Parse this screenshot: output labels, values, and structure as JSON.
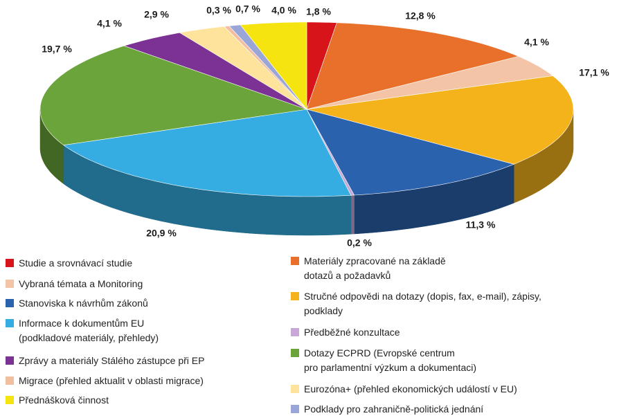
{
  "chart_data": {
    "type": "pie3d",
    "categories": [
      "Studie a srovnávací studie",
      "Materiály zpracované na základě\ndotazů a požadavků",
      "Vybraná témata a Monitoring",
      "Stručné odpovědi na dotazy (dopis, fax, e-mail), zápisy,\npodklady",
      "Stanoviska k návrhům zákonů",
      "Předběžné konzultace",
      "Informace k dokumentům EU\n(podkladové materiály, přehledy)",
      "Dotazy ECPRD (Evropské centrum\npro parlamentní výzkum a dokumentaci)",
      "Zprávy a materiály Stálého zástupce při EP",
      "Eurozóna+ (přehled ekonomických událostí v EU)",
      "Migrace (přehled aktualit v oblasti migrace)",
      "Podklady pro zahraničně-politická jednání",
      "Přednášková činnost"
    ],
    "values": [
      1.8,
      12.8,
      4.1,
      17.1,
      11.3,
      0.2,
      20.9,
      19.7,
      4.1,
      2.9,
      0.3,
      0.7,
      4.0
    ],
    "value_labels": [
      "1,8 %",
      "12,8 %",
      "4,1 %",
      "17,1 %",
      "11,3 %",
      "0,2 %",
      "20,9 %",
      "19,7 %",
      "4,1 %",
      "2,9 %",
      "0,3 %",
      "0,7 %",
      "4,0 %"
    ],
    "colors": [
      "#d7141a",
      "#e8702a",
      "#f4c4a6",
      "#f5b31b",
      "#2a62ad",
      "#c8a8d5",
      "#35ade2",
      "#6aa43a",
      "#7b3294",
      "#fde39b",
      "#f2bea0",
      "#9aa6d8",
      "#f5e410"
    ]
  }
}
